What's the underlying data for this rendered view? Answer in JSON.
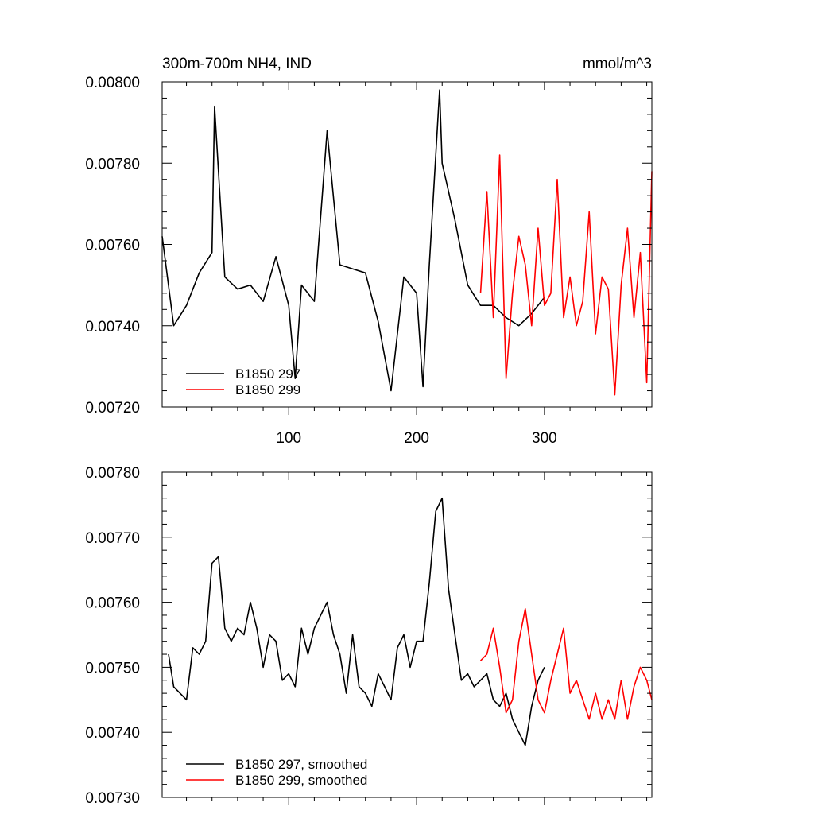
{
  "chart_data": [
    {
      "type": "line",
      "title": "300m-700m NH4, IND",
      "units": "mmol/m^3",
      "xlim": [
        1,
        384
      ],
      "ylim": [
        0.0072,
        0.008
      ],
      "xticks": [
        100,
        200,
        300
      ],
      "xtick_labels": [
        "100",
        "200",
        "300"
      ],
      "yticks": [
        0.0072,
        0.0074,
        0.0076,
        0.0078,
        0.008
      ],
      "ytick_labels": [
        "0.00720",
        "0.00740",
        "0.00760",
        "0.00780",
        "0.00800"
      ],
      "legend_position": "bottom-left",
      "series": [
        {
          "name": "B1850 297",
          "color": "#000000",
          "x": [
            1,
            10,
            20,
            30,
            40,
            42,
            50,
            60,
            70,
            80,
            90,
            100,
            105,
            110,
            120,
            130,
            140,
            150,
            160,
            170,
            180,
            190,
            200,
            205,
            210,
            218,
            220,
            225,
            230,
            240,
            250,
            260,
            270,
            280,
            290,
            300
          ],
          "values": [
            0.00762,
            0.0074,
            0.00745,
            0.00753,
            0.00758,
            0.00794,
            0.00752,
            0.00749,
            0.0075,
            0.00746,
            0.00757,
            0.00745,
            0.00727,
            0.0075,
            0.00746,
            0.00788,
            0.00755,
            0.00754,
            0.00753,
            0.00741,
            0.00724,
            0.00752,
            0.00748,
            0.00725,
            0.00755,
            0.00798,
            0.0078,
            0.00773,
            0.00766,
            0.0075,
            0.00745,
            0.00745,
            0.00742,
            0.0074,
            0.00743,
            0.00747
          ]
        },
        {
          "name": "B1850 299",
          "color": "#ff0000",
          "x": [
            250,
            255,
            260,
            265,
            270,
            275,
            280,
            285,
            290,
            295,
            300,
            305,
            310,
            315,
            320,
            325,
            330,
            335,
            340,
            345,
            350,
            355,
            360,
            365,
            370,
            375,
            380,
            384
          ],
          "values": [
            0.00748,
            0.00773,
            0.00742,
            0.00782,
            0.00727,
            0.00748,
            0.00762,
            0.00755,
            0.0074,
            0.00764,
            0.00745,
            0.00748,
            0.00776,
            0.00742,
            0.00752,
            0.0074,
            0.00746,
            0.00768,
            0.00738,
            0.00752,
            0.00749,
            0.00723,
            0.0075,
            0.00764,
            0.00742,
            0.00758,
            0.00726,
            0.00778
          ]
        }
      ]
    },
    {
      "type": "line",
      "xlim": [
        1,
        384
      ],
      "ylim": [
        0.0073,
        0.0078
      ],
      "xticks": [
        100,
        200,
        300
      ],
      "yticks": [
        0.0073,
        0.0074,
        0.0075,
        0.0076,
        0.0077,
        0.0078
      ],
      "ytick_labels": [
        "0.00730",
        "0.00740",
        "0.00750",
        "0.00760",
        "0.00770",
        "0.00780"
      ],
      "legend_position": "bottom-left",
      "series": [
        {
          "name": "B1850 297, smoothed",
          "color": "#000000",
          "x": [
            6,
            10,
            15,
            20,
            25,
            30,
            35,
            40,
            45,
            50,
            55,
            60,
            65,
            70,
            75,
            80,
            85,
            90,
            95,
            100,
            105,
            110,
            115,
            120,
            125,
            130,
            135,
            140,
            145,
            150,
            155,
            160,
            165,
            170,
            175,
            180,
            185,
            190,
            195,
            200,
            205,
            210,
            215,
            220,
            225,
            230,
            235,
            240,
            245,
            250,
            255,
            260,
            265,
            270,
            275,
            280,
            285,
            290,
            295,
            300
          ],
          "values": [
            0.00752,
            0.00747,
            0.00746,
            0.00745,
            0.00753,
            0.00752,
            0.00754,
            0.00766,
            0.00767,
            0.00756,
            0.00754,
            0.00756,
            0.00755,
            0.0076,
            0.00756,
            0.0075,
            0.00755,
            0.00754,
            0.00748,
            0.00749,
            0.00747,
            0.00756,
            0.00752,
            0.00756,
            0.00758,
            0.0076,
            0.00755,
            0.00752,
            0.00746,
            0.00755,
            0.00747,
            0.00746,
            0.00744,
            0.00749,
            0.00747,
            0.00745,
            0.00753,
            0.00755,
            0.0075,
            0.00754,
            0.00754,
            0.00763,
            0.00774,
            0.00776,
            0.00762,
            0.00755,
            0.00748,
            0.00749,
            0.00747,
            0.00748,
            0.00749,
            0.00745,
            0.00744,
            0.00746,
            0.00742,
            0.0074,
            0.00738,
            0.00744,
            0.00748,
            0.0075
          ]
        },
        {
          "name": "B1850 299, smoothed",
          "color": "#ff0000",
          "x": [
            250,
            255,
            260,
            265,
            270,
            275,
            280,
            285,
            290,
            295,
            300,
            305,
            310,
            315,
            320,
            325,
            330,
            335,
            340,
            345,
            350,
            355,
            360,
            365,
            370,
            375,
            380,
            384
          ],
          "values": [
            0.00751,
            0.00752,
            0.00756,
            0.0075,
            0.00743,
            0.00745,
            0.00754,
            0.00759,
            0.00752,
            0.00745,
            0.00743,
            0.00748,
            0.00752,
            0.00756,
            0.00746,
            0.00748,
            0.00745,
            0.00742,
            0.00746,
            0.00742,
            0.00745,
            0.00742,
            0.00748,
            0.00742,
            0.00747,
            0.0075,
            0.00748,
            0.00745
          ]
        }
      ]
    }
  ]
}
